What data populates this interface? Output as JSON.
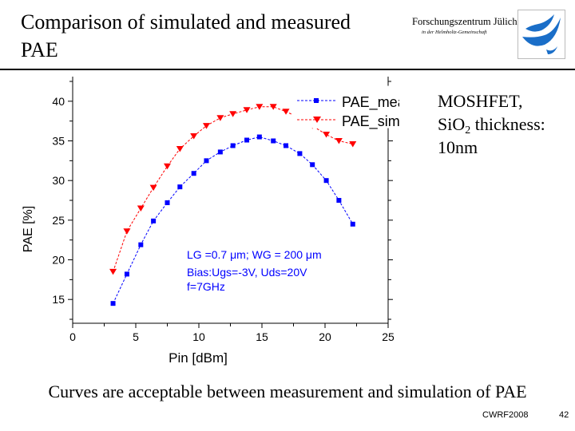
{
  "slide": {
    "title_line1": "Comparison of simulated and measured",
    "title_line2": "PAE",
    "logo_name": "Forschungszentrum Jülich",
    "logo_sub": "in der Helmholtz-Gemeinschaft",
    "note_line1": "MOSHFET,",
    "note_si": "Si",
    "note_o": "O",
    "note_sub": "2",
    "note_thickness": " thickness:",
    "note_line3": "10nm",
    "conclusion": "Curves are acceptable between measurement and simulation of PAE",
    "footer_left": "CWRF2008",
    "footer_right": "42",
    "colors": {
      "meas": "#0000ff",
      "sim": "#ff0000",
      "logo": "#1a6ec8"
    }
  },
  "chart_data": {
    "type": "line",
    "xlabel": "Pin [dBm]",
    "ylabel": "PAE [%]",
    "xlim": [
      0,
      25
    ],
    "ylim": [
      12,
      42.5
    ],
    "xticks": [
      0,
      5,
      10,
      15,
      20,
      25
    ],
    "yticks": [
      15,
      20,
      25,
      30,
      35,
      40
    ],
    "x": [
      3.2,
      4.3,
      5.4,
      6.4,
      7.5,
      8.5,
      9.6,
      10.6,
      11.7,
      12.7,
      13.8,
      14.8,
      15.9,
      16.9,
      18.0,
      19.0,
      20.1,
      21.1,
      22.2
    ],
    "series": [
      {
        "name": "PAE_meas",
        "marker": "square",
        "values": [
          14.5,
          18.2,
          21.9,
          24.9,
          27.2,
          29.2,
          30.9,
          32.5,
          33.6,
          34.4,
          35.1,
          35.5,
          35.0,
          34.4,
          33.4,
          32.0,
          30.0,
          27.5,
          24.5
        ]
      },
      {
        "name": "PAE_sim",
        "marker": "triangle",
        "values": [
          18.5,
          23.6,
          26.5,
          29.1,
          31.8,
          34.0,
          35.6,
          36.9,
          37.9,
          38.4,
          38.9,
          39.3,
          39.3,
          38.7,
          37.9,
          36.9,
          35.8,
          35.0,
          34.6
        ]
      }
    ],
    "annotations": [
      "LG =0.7 μm; WG = 200 μm",
      "Bias:Ugs=-3V, Uds=20V",
      "f=7GHz"
    ],
    "legend": "top-right"
  }
}
